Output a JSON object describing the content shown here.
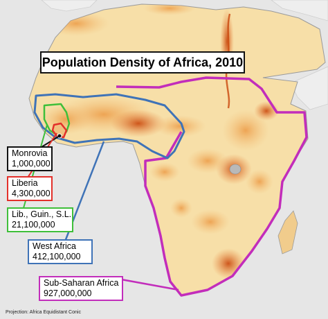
{
  "title": "Population Density of Africa, 2010",
  "projection_note": "Projection: Africa Equidistant Conic",
  "colors": {
    "land_light": "#f7dfa8",
    "land_mid": "#ef9f45",
    "land_dense": "#c9470c",
    "water": "#e6e6e6",
    "monrovia": "#111111",
    "liberia": "#e3302a",
    "lib_guin_sl": "#3fbf3a",
    "west_africa": "#3f73b7",
    "sub_saharan": "#c22dbb"
  },
  "regions": [
    {
      "id": "monrovia",
      "name": "Monrovia",
      "population": "1,000,000",
      "color": "#111111"
    },
    {
      "id": "liberia",
      "name": "Liberia",
      "population": "4,300,000",
      "color": "#e3302a"
    },
    {
      "id": "lib_guin_sl",
      "name": "Lib., Guin., S.L.",
      "population": "21,100,000",
      "color": "#3fbf3a"
    },
    {
      "id": "west_africa",
      "name": "West Africa",
      "population": "412,100,000",
      "color": "#3f73b7"
    },
    {
      "id": "sub_saharan",
      "name": "Sub-Saharan Africa",
      "population": "927,000,000",
      "color": "#c22dbb"
    }
  ]
}
